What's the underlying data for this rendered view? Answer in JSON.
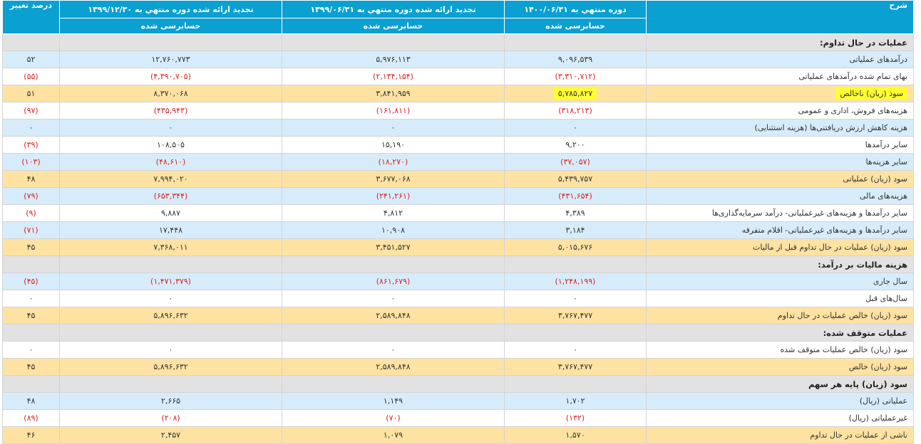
{
  "header": {
    "desc_label": "شرح",
    "col1_title": "دوره منتهي به ۱۴۰۰/۰۶/۳۱",
    "col2_title": "تجدید ارائه شده دوره منتهي به ۱۳۹۹/۰۶/۳۱",
    "col3_title": "تجدید ارائه شده دوره منتهي به ۱۳۹۹/۱۲/۳۰",
    "change_label": "درصد تغییر",
    "col1_sub": "حسابرسی شده",
    "col2_sub": "حسابرسی شده",
    "col3_sub": "حسابرسی شده"
  },
  "colors": {
    "header": "#0aa0d2",
    "row_blue": "#d7ecfa",
    "row_yellow": "#fde2a2",
    "row_section": "#e2e2e2",
    "negative": "#e02020",
    "highlight": "#ffff33"
  },
  "rows": [
    {
      "type": "section",
      "desc": "عملیات در حال تداوم:"
    },
    {
      "type": "blue",
      "desc": "درآمدهای عملیاتی",
      "v1": "۹,۰۹۶,۵۳۹",
      "v2": "۵,۹۷۶,۱۱۳",
      "v3": "۱۲,۷۶۰,۷۷۳",
      "change": "۵۲"
    },
    {
      "type": "white",
      "desc": "بهای تمام شده درآمدهای عملیاتی",
      "v1": "(۳,۳۱۰,۷۱۲)",
      "v2": "(۲,۱۳۴,۱۵۴)",
      "v3": "(۴,۳۹۰,۷۰۵)",
      "change": "(۵۵)"
    },
    {
      "type": "yellow",
      "desc": "سود (زیان) ناخالص",
      "v1": "۵,۷۸۵,۸۲۷",
      "v2": "۳,۸۴۱,۹۵۹",
      "v3": "۸,۳۷۰,۰۶۸",
      "change": "۵۱",
      "highlight_desc": true,
      "highlight_v1": true
    },
    {
      "type": "white",
      "desc": "هزینه‌های فروش، اداری و عمومی",
      "v1": "(۳۱۸,۲۱۳)",
      "v2": "(۱۶۱,۸۱۱)",
      "v3": "(۴۳۵,۹۴۳)",
      "change": "(۹۷)"
    },
    {
      "type": "blue",
      "desc": "هزینه کاهش ارزش دریافتنی‌ها (هزینه استثنایی)",
      "v1": "۰",
      "v2": "۰",
      "v3": "۰",
      "change": "۰"
    },
    {
      "type": "white",
      "desc": "سایر درآمدها",
      "v1": "۹,۲۰۰",
      "v2": "۱۵,۱۹۰",
      "v3": "۱۰۸,۵۰۵",
      "change": "(۳۹)"
    },
    {
      "type": "blue",
      "desc": "سایر هزینه‌ها",
      "v1": "(۳۷,۰۵۷)",
      "v2": "(۱۸,۲۷۰)",
      "v3": "(۴۸,۶۱۰)",
      "change": "(۱۰۳)"
    },
    {
      "type": "yellow",
      "desc": "سود (زیان) عملیاتی",
      "v1": "۵,۴۳۹,۷۵۷",
      "v2": "۳,۶۷۷,۰۶۸",
      "v3": "۷,۹۹۴,۰۲۰",
      "change": "۴۸"
    },
    {
      "type": "blue",
      "desc": "هزینه‌های مالی",
      "v1": "(۴۳۱,۶۵۴)",
      "v2": "(۲۴۱,۲۶۱)",
      "v3": "(۶۵۳,۳۴۴)",
      "change": "(۷۹)"
    },
    {
      "type": "white",
      "desc": "سایر درآمدها و هزینه‌های غیرعملیاتی- درآمد سرمایه‌گذاری‌ها",
      "v1": "۴,۳۸۹",
      "v2": "۴,۸۱۲",
      "v3": "۹,۸۸۷",
      "change": "(۹)"
    },
    {
      "type": "blue",
      "desc": "سایر درآمدها و هزینه‌های غیرعملیاتی- اقلام متفرقه",
      "v1": "۳,۱۸۴",
      "v2": "۱۰,۹۰۸",
      "v3": "۱۷,۴۴۸",
      "change": "(۷۱)"
    },
    {
      "type": "yellow",
      "desc": "سود (زیان) عملیات در حال تداوم قبل از مالیات",
      "v1": "۵,۰۱۵,۶۷۶",
      "v2": "۳,۴۵۱,۵۲۷",
      "v3": "۷,۳۶۸,۰۱۱",
      "change": "۴۵"
    },
    {
      "type": "section",
      "desc": "هزینه مالیات بر درآمد:"
    },
    {
      "type": "blue",
      "desc": "سال جاری",
      "v1": "(۱,۲۴۸,۱۹۹)",
      "v2": "(۸۶۱,۶۷۹)",
      "v3": "(۱,۴۷۱,۳۷۹)",
      "change": "(۴۵)"
    },
    {
      "type": "white",
      "desc": "سال‌های قبل",
      "v1": "۰",
      "v2": "۰",
      "v3": "۰",
      "change": "۰"
    },
    {
      "type": "yellow",
      "desc": "سود (زیان) خالص عملیات در حال تداوم",
      "v1": "۳,۷۶۷,۴۷۷",
      "v2": "۲,۵۸۹,۸۴۸",
      "v3": "۵,۸۹۶,۶۳۲",
      "change": "۴۵"
    },
    {
      "type": "section",
      "desc": "عملیات متوقف شده:"
    },
    {
      "type": "white",
      "desc": "سود (زیان) خالص عملیات متوقف شده",
      "v1": "۰",
      "v2": "۰",
      "v3": "۰",
      "change": "۰"
    },
    {
      "type": "yellow",
      "desc": "سود (زیان) خالص",
      "v1": "۳,۷۶۷,۴۷۷",
      "v2": "۲,۵۸۹,۸۴۸",
      "v3": "۵,۸۹۶,۶۳۲",
      "change": "۴۵"
    },
    {
      "type": "section",
      "desc": "سود (زیان) پایه هر سهم"
    },
    {
      "type": "blue",
      "desc": "عملیاتی (ریال)",
      "v1": "۱,۷۰۲",
      "v2": "۱,۱۴۹",
      "v3": "۲,۶۶۵",
      "change": "۴۸"
    },
    {
      "type": "white",
      "desc": "غیرعملیاتی (ریال)",
      "v1": "(۱۳۲)",
      "v2": "(۷۰)",
      "v3": "(۲۰۸)",
      "change": "(۸۹)"
    },
    {
      "type": "yellow",
      "desc": "ناشی از عملیات در حال تداوم",
      "v1": "۱,۵۷۰",
      "v2": "۱,۰۷۹",
      "v3": "۲,۴۵۷",
      "change": "۴۶"
    }
  ]
}
